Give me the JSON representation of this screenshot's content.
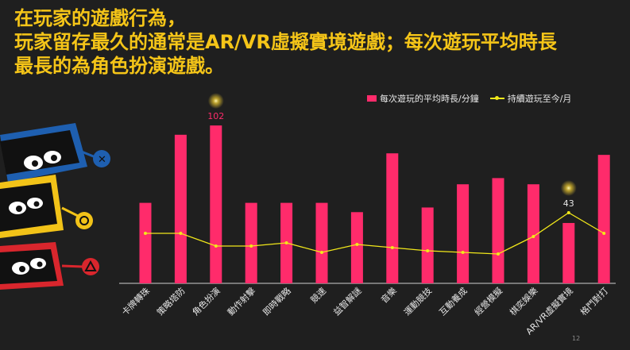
{
  "headline": {
    "line1": "在玩家的遊戲行為，",
    "line2": "玩家留存最久的通常是AR/VR虛擬實境遊戲；每次遊玩平均時長",
    "line3": "最長的為角色扮演遊戲。"
  },
  "page_number": "12",
  "colors": {
    "bar": "#ff2b6b",
    "line": "#f2e81a",
    "headline": "#f5c518",
    "background": "#1f1f1f"
  },
  "chart_data": {
    "type": "bar",
    "categories": [
      "卡牌轉珠",
      "策略塔防",
      "角色扮演",
      "動作射擊",
      "即時戰略",
      "競速",
      "益智解謎",
      "音樂",
      "運動競技",
      "互動養成",
      "經營模擬",
      "棋奕娛樂",
      "AR/VR虛擬實境",
      "格鬥對打"
    ],
    "series": [
      {
        "name": "每次遊玩的平均時長/分鐘",
        "type": "bar",
        "values": [
          52,
          96,
          102,
          52,
          52,
          52,
          46,
          84,
          49,
          64,
          68,
          64,
          39,
          83
        ]
      },
      {
        "name": "持續遊玩至今/月",
        "type": "line",
        "values": [
          30,
          30,
          22,
          22,
          24,
          18,
          23,
          21,
          19,
          18,
          17,
          28,
          43,
          30
        ]
      }
    ],
    "data_labels": [
      {
        "series": 0,
        "index": 2,
        "text": "102"
      },
      {
        "series": 1,
        "index": 12,
        "text": "43"
      }
    ],
    "legend_position": "top-right",
    "grid": false
  }
}
